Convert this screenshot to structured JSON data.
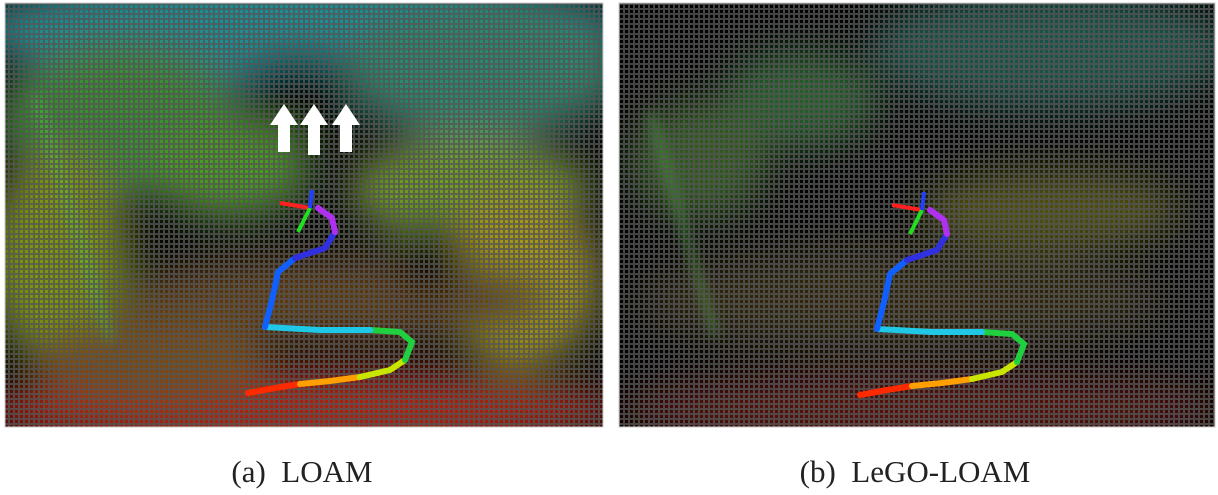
{
  "panels": [
    {
      "caption": "(a)  LOAM"
    },
    {
      "caption": "(b)  LeGO-LOAM"
    }
  ]
}
